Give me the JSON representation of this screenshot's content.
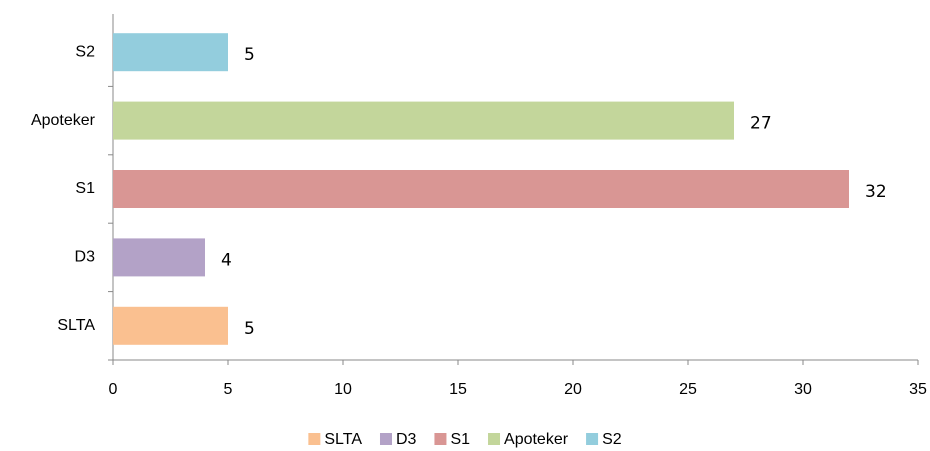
{
  "chart_data": {
    "type": "barh",
    "categories": [
      "SLTA",
      "D3",
      "S1",
      "Apoteker",
      "S2"
    ],
    "values": [
      5,
      4,
      32,
      27,
      5
    ],
    "colors": [
      "#fac090",
      "#b3a2c7",
      "#d99694",
      "#c3d69b",
      "#93cddd"
    ],
    "xlim": [
      0,
      35
    ],
    "xticks": [
      0,
      5,
      10,
      15,
      20,
      25,
      30,
      35
    ],
    "legend": "bottom",
    "grid": false
  }
}
